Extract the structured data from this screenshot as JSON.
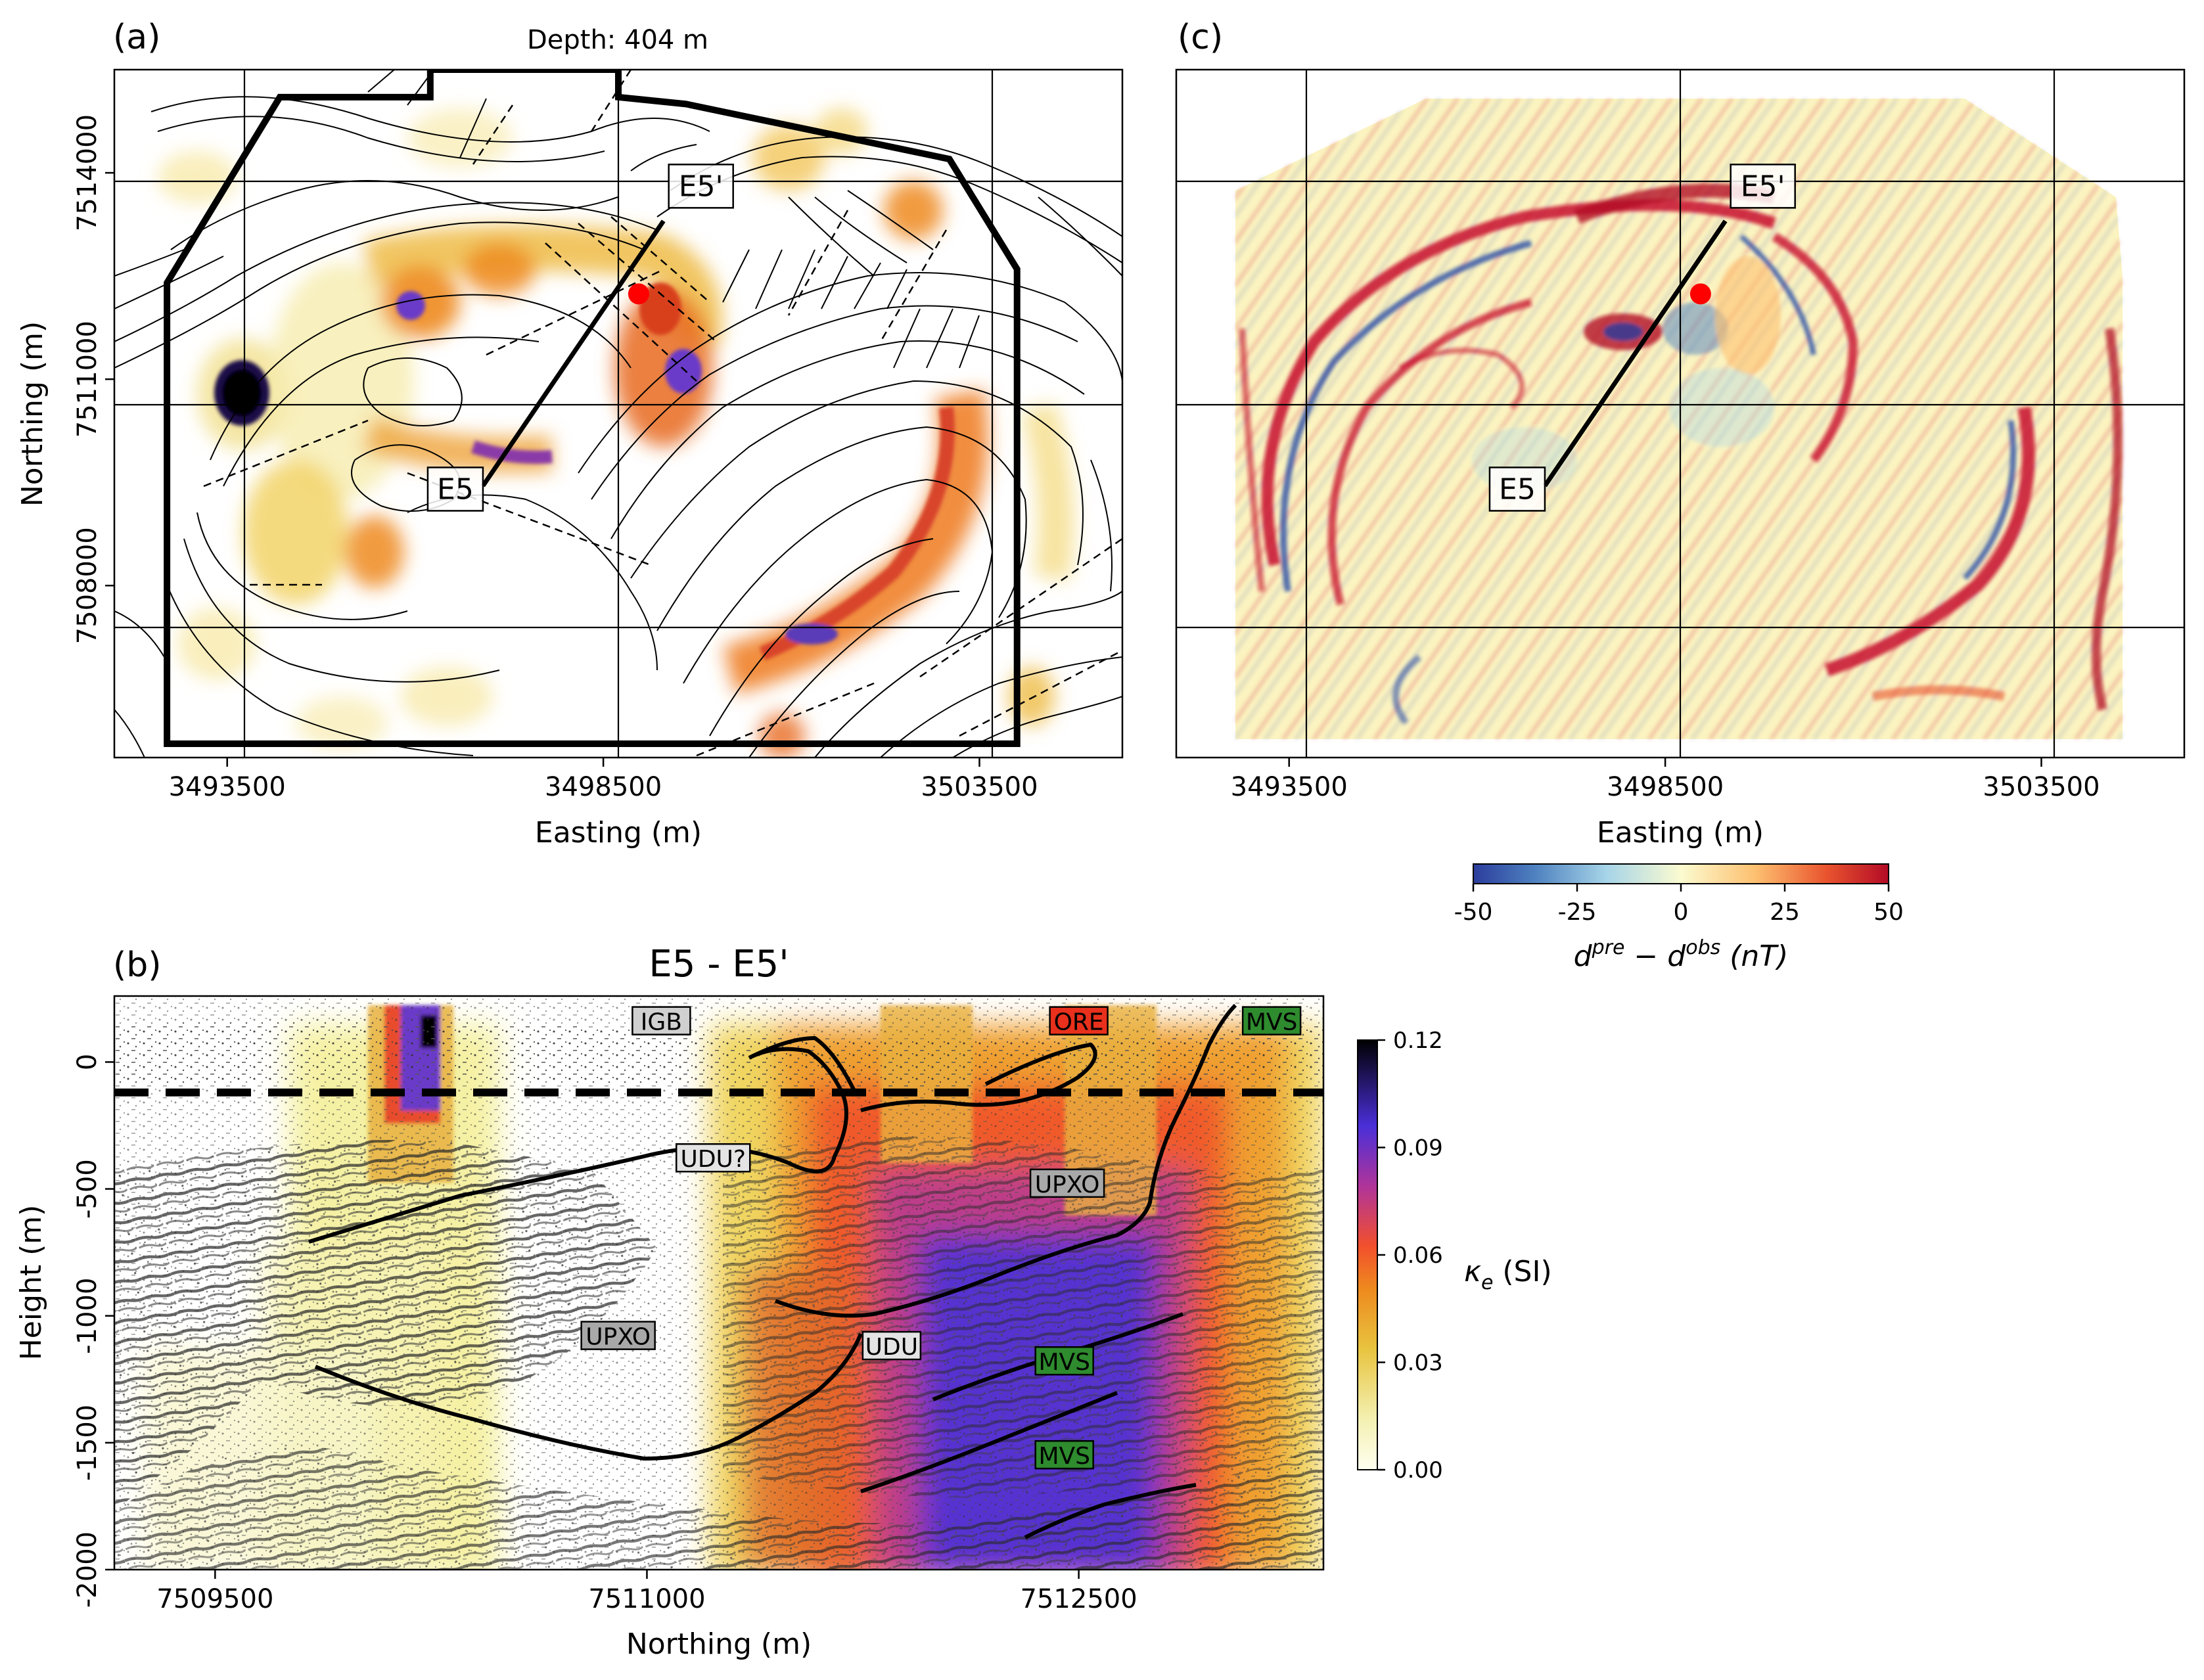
{
  "colors": {
    "frame": "#000000",
    "point": "#ff0000",
    "kappa_low": "#fffff0",
    "kappa_high": "#000000",
    "misfit_low": "#2b3d9c",
    "misfit_high": "#b30b26"
  },
  "chart_data": [
    {
      "id": "a",
      "panel_label": "(a)",
      "type": "heatmap",
      "title": "Depth: 404 m",
      "xlabel": "Easting (m)",
      "ylabel": "Northing (m)",
      "xlim": [
        3492000,
        3505400
      ],
      "ylim": [
        7505500,
        7515500
      ],
      "x_ticks": [
        {
          "value": 3493500,
          "label": "3493500"
        },
        {
          "value": 3498500,
          "label": "3498500"
        },
        {
          "value": 3503500,
          "label": "3503500"
        }
      ],
      "y_ticks": [
        {
          "value": 7508000,
          "label": "7508000"
        },
        {
          "value": 7511000,
          "label": "7511000"
        },
        {
          "value": 7514000,
          "label": "7514000"
        }
      ],
      "grid": true,
      "section_line": {
        "start": {
          "label": "E5",
          "easting": 3496900,
          "northing": 7509450
        },
        "end": {
          "label": "E5'",
          "easting": 3499300,
          "northing": 7513300
        }
      },
      "point": {
        "easting": 3498970,
        "northing": 7512240
      },
      "survey_outline": [
        [
          3496200,
          7515500
        ],
        [
          3498700,
          7515500
        ],
        [
          3498700,
          7515100
        ],
        [
          3499600,
          7515000
        ],
        [
          3503100,
          7514200
        ],
        [
          3504000,
          7512600
        ],
        [
          3504000,
          7505700
        ],
        [
          3492700,
          7505700
        ],
        [
          3492700,
          7512400
        ],
        [
          3494200,
          7515100
        ],
        [
          3496200,
          7515100
        ]
      ]
    },
    {
      "id": "c",
      "panel_label": "(c)",
      "type": "heatmap",
      "xlabel": "Easting (m)",
      "xlim": [
        3492000,
        3505400
      ],
      "ylim": [
        7505500,
        7515500
      ],
      "x_ticks": [
        {
          "value": 3493500,
          "label": "3493500"
        },
        {
          "value": 3498500,
          "label": "3498500"
        },
        {
          "value": 3503500,
          "label": "3503500"
        }
      ],
      "grid": true,
      "section_line": {
        "start": {
          "label": "E5",
          "easting": 3496900,
          "northing": 7509450
        },
        "end": {
          "label": "E5'",
          "easting": 3499300,
          "northing": 7513300
        }
      },
      "point": {
        "easting": 3498970,
        "northing": 7512240
      },
      "colorbar": {
        "label": "d^pre − d^obs (nT)",
        "label_parts": [
          "d",
          "pre",
          " − d",
          "obs",
          " (nT)"
        ],
        "range": [
          -50,
          50
        ],
        "ticks": [
          "-50",
          "-25",
          "0",
          "25",
          "50"
        ],
        "colormap": "RdYlBu_r"
      }
    },
    {
      "id": "b",
      "panel_label": "(b)",
      "type": "heatmap",
      "title": "E5 - E5'",
      "xlabel": "Northing (m)",
      "ylabel": "Height (m)",
      "xlim": [
        7509150,
        7513350
      ],
      "ylim": [
        -2000,
        260
      ],
      "x_ticks": [
        {
          "value": 7509500,
          "label": "7509500"
        },
        {
          "value": 7511000,
          "label": "7511000"
        },
        {
          "value": 7512500,
          "label": "7512500"
        }
      ],
      "y_ticks": [
        {
          "value": 0,
          "label": "0"
        },
        {
          "value": -500,
          "label": "-500"
        },
        {
          "value": -1000,
          "label": "-1000"
        },
        {
          "value": -1500,
          "label": "-1500"
        },
        {
          "value": -2000,
          "label": "-2000"
        }
      ],
      "depth_slice_height": -120,
      "unit_labels": [
        {
          "text": "IGB",
          "northing": 7511050,
          "height": 160,
          "fill": "#d0d0d0",
          "color": "#000000"
        },
        {
          "text": "ORE",
          "northing": 7512500,
          "height": 160,
          "fill": "#e8301c",
          "color": "#000000"
        },
        {
          "text": "MVS",
          "northing": 7513170,
          "height": 160,
          "fill": "#2e8b2e",
          "color": "#000000"
        },
        {
          "text": "UDU?",
          "northing": 7511230,
          "height": -380,
          "fill": "#e4e4e4",
          "color": "#000000"
        },
        {
          "text": "UPXO",
          "northing": 7512460,
          "height": -480,
          "fill": "#a8a8a8",
          "color": "#000000"
        },
        {
          "text": "UPXO",
          "northing": 7510900,
          "height": -1080,
          "fill": "#a8a8a8",
          "color": "#000000"
        },
        {
          "text": "UDU",
          "northing": 7511850,
          "height": -1120,
          "fill": "#e4e4e4",
          "color": "#000000"
        },
        {
          "text": "MVS",
          "northing": 7512450,
          "height": -1180,
          "fill": "#2e8b2e",
          "color": "#000000"
        },
        {
          "text": "MVS",
          "northing": 7512450,
          "height": -1550,
          "fill": "#2e8b2e",
          "color": "#000000"
        }
      ],
      "colorbar": {
        "label": "κe (SI)",
        "label_parts": [
          "κ",
          "e",
          " (SI)"
        ],
        "range": [
          0,
          0.12
        ],
        "ticks": [
          "0.00",
          "0.03",
          "0.06",
          "0.09",
          "0.12"
        ],
        "colormap": "CMRmap_r"
      }
    }
  ]
}
